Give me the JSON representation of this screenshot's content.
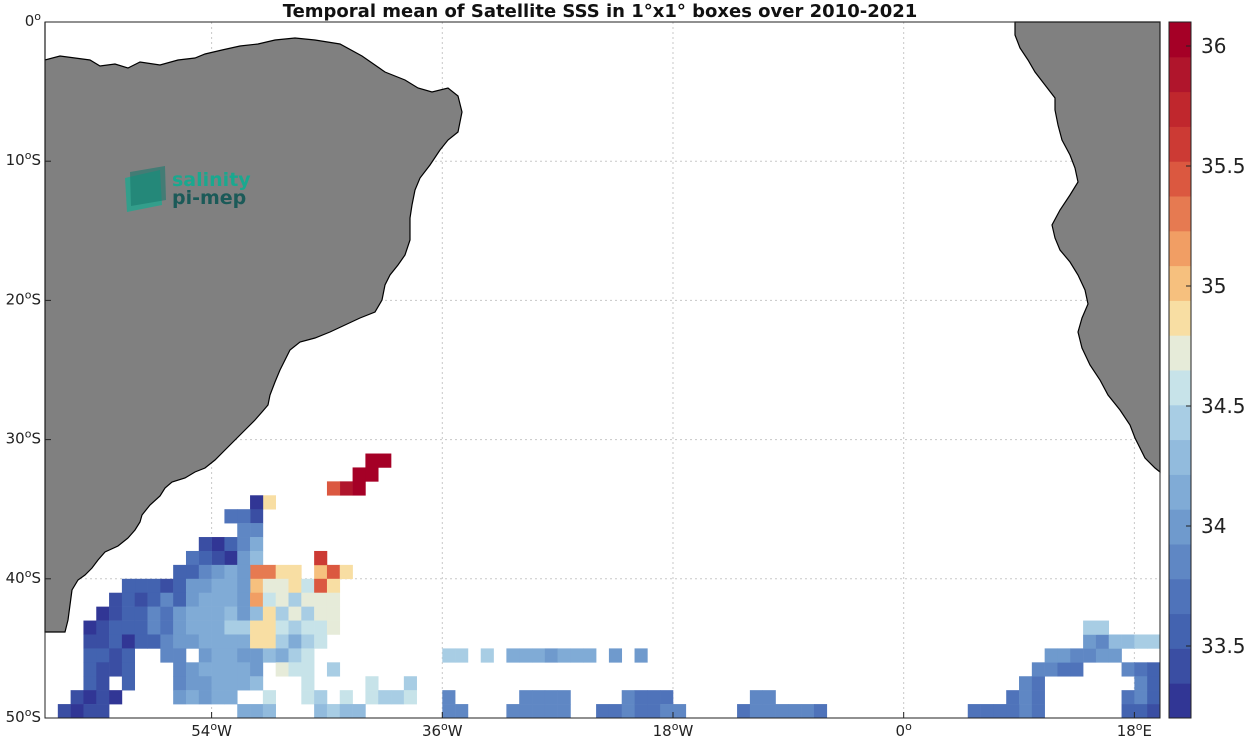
{
  "chart_data": {
    "type": "heatmap",
    "title": "Temporal mean of Satellite SSS in 1°x1° boxes over 2010-2021",
    "x_ticks": [
      {
        "lon": -54,
        "label": "54",
        "hemi": "W"
      },
      {
        "lon": -36,
        "label": "36",
        "hemi": "W"
      },
      {
        "lon": -18,
        "label": "18",
        "hemi": "W"
      },
      {
        "lon": 0,
        "label": "0",
        "hemi": ""
      },
      {
        "lon": 18,
        "label": "18",
        "hemi": "E"
      }
    ],
    "y_ticks": [
      {
        "lat": 0,
        "label": "0",
        "hemi": ""
      },
      {
        "lat": -10,
        "label": "10",
        "hemi": "S"
      },
      {
        "lat": -20,
        "label": "20",
        "hemi": "S"
      },
      {
        "lat": -30,
        "label": "30",
        "hemi": "S"
      },
      {
        "lat": -40,
        "label": "40",
        "hemi": "S"
      },
      {
        "lat": -50,
        "label": "50",
        "hemi": "S"
      }
    ],
    "lon_range": [
      -67,
      20
    ],
    "lat_range": [
      -50,
      0
    ],
    "grid": true,
    "colorbar": {
      "min": 33.2,
      "max": 36.1,
      "ticks": [
        "33.5",
        "34",
        "34.5",
        "35",
        "35.5",
        "36"
      ],
      "colors": [
        "#313695",
        "#3a4ea3",
        "#4363b0",
        "#4f73ba",
        "#5f87c4",
        "#6f9acd",
        "#80abd6",
        "#92bbdd",
        "#a8cde4",
        "#c7e3e9",
        "#e6ebd9",
        "#f8dea3",
        "#f6c07e",
        "#f19e64",
        "#e67a51",
        "#db5840",
        "#cc3a34",
        "#c0272d",
        "#b0152c",
        "#a50026"
      ]
    },
    "land_color": "#808080",
    "logo": {
      "line1": "salinity",
      "line2": "pi-mep"
    },
    "cells": [
      [
        -42,
        -31,
        36.0
      ],
      [
        -41,
        -31,
        36.0
      ],
      [
        -43,
        -32,
        36.0
      ],
      [
        -42,
        -32,
        36.0
      ],
      [
        -44,
        -33,
        35.9
      ],
      [
        -43,
        -33,
        36.0
      ],
      [
        -45,
        -33,
        35.5
      ],
      [
        -50,
        -34,
        34.9
      ],
      [
        -51,
        -34,
        33.3
      ],
      [
        -51,
        -35,
        33.4
      ],
      [
        -52,
        -35,
        33.7
      ],
      [
        -53,
        -35,
        33.7
      ],
      [
        -52,
        -36,
        33.8
      ],
      [
        -51,
        -36,
        33.8
      ],
      [
        -54,
        -37,
        33.3
      ],
      [
        -55,
        -37,
        33.4
      ],
      [
        -53,
        -37,
        33.6
      ],
      [
        -52,
        -37,
        33.9
      ],
      [
        -51,
        -37,
        34.1
      ],
      [
        -53,
        -38,
        33.3
      ],
      [
        -54,
        -38,
        33.4
      ],
      [
        -55,
        -38,
        33.6
      ],
      [
        -56,
        -38,
        33.7
      ],
      [
        -52,
        -38,
        34.0
      ],
      [
        -51,
        -38,
        34.3
      ],
      [
        -51,
        -39,
        35.3
      ],
      [
        -50,
        -39,
        35.3
      ],
      [
        -49,
        -39,
        34.9
      ],
      [
        -48,
        -39,
        34.9
      ],
      [
        -46,
        -39,
        35.0
      ],
      [
        -45,
        -39,
        35.5
      ],
      [
        -46,
        -38,
        35.6
      ],
      [
        -44,
        -39,
        34.9
      ],
      [
        -56,
        -39,
        33.5
      ],
      [
        -57,
        -39,
        33.6
      ],
      [
        -55,
        -39,
        33.8
      ],
      [
        -54,
        -39,
        34.0
      ],
      [
        -53,
        -39,
        34.1
      ],
      [
        -52,
        -39,
        34.0
      ],
      [
        -51,
        -40,
        35.0
      ],
      [
        -50,
        -40,
        34.7
      ],
      [
        -49,
        -40,
        34.7
      ],
      [
        -48,
        -40,
        34.9
      ],
      [
        -47,
        -40,
        34.6
      ],
      [
        -46,
        -40,
        35.4
      ],
      [
        -45,
        -40,
        34.8
      ],
      [
        -60,
        -40,
        33.5
      ],
      [
        -61,
        -40,
        33.5
      ],
      [
        -59,
        -40,
        33.5
      ],
      [
        -58,
        -40,
        33.4
      ],
      [
        -57,
        -40,
        33.6
      ],
      [
        -56,
        -40,
        34.0
      ],
      [
        -55,
        -40,
        34.0
      ],
      [
        -54,
        -40,
        34.1
      ],
      [
        -53,
        -40,
        34.2
      ],
      [
        -52,
        -40,
        34.0
      ],
      [
        -62,
        -41,
        33.4
      ],
      [
        -61,
        -41,
        33.5
      ],
      [
        -60,
        -41,
        33.4
      ],
      [
        -59,
        -41,
        33.6
      ],
      [
        -58,
        -41,
        33.8
      ],
      [
        -57,
        -41,
        33.5
      ],
      [
        -56,
        -41,
        34.0
      ],
      [
        -55,
        -41,
        34.1
      ],
      [
        -54,
        -41,
        34.1
      ],
      [
        -53,
        -41,
        34.2
      ],
      [
        -52,
        -41,
        34.0
      ],
      [
        -51,
        -41,
        35.1
      ],
      [
        -50,
        -41,
        34.6
      ],
      [
        -49,
        -41,
        34.7
      ],
      [
        -48,
        -41,
        34.4
      ],
      [
        -47,
        -41,
        34.7
      ],
      [
        -46,
        -41,
        34.7
      ],
      [
        -45,
        -41,
        34.7
      ],
      [
        -63,
        -42,
        33.3
      ],
      [
        -62,
        -42,
        33.4
      ],
      [
        -61,
        -42,
        33.5
      ],
      [
        -60,
        -42,
        33.6
      ],
      [
        -59,
        -42,
        33.9
      ],
      [
        -58,
        -42,
        33.7
      ],
      [
        -57,
        -42,
        34.0
      ],
      [
        -56,
        -42,
        34.1
      ],
      [
        -55,
        -42,
        34.2
      ],
      [
        -54,
        -42,
        34.1
      ],
      [
        -53,
        -42,
        34.3
      ],
      [
        -52,
        -42,
        34.0
      ],
      [
        -51,
        -42,
        34.3
      ],
      [
        -50,
        -42,
        34.9
      ],
      [
        -49,
        -42,
        34.4
      ],
      [
        -48,
        -42,
        34.7
      ],
      [
        -47,
        -42,
        34.4
      ],
      [
        -46,
        -42,
        34.7
      ],
      [
        -45,
        -42,
        34.7
      ],
      [
        -64,
        -43,
        33.3
      ],
      [
        -63,
        -43,
        33.4
      ],
      [
        -62,
        -43,
        33.5
      ],
      [
        -61,
        -43,
        33.6
      ],
      [
        -60,
        -43,
        33.5
      ],
      [
        -59,
        -43,
        33.8
      ],
      [
        -58,
        -43,
        33.7
      ],
      [
        -57,
        -43,
        34.0
      ],
      [
        -56,
        -43,
        34.1
      ],
      [
        -55,
        -43,
        34.1
      ],
      [
        -54,
        -43,
        34.2
      ],
      [
        -53,
        -43,
        34.4
      ],
      [
        -52,
        -43,
        34.4
      ],
      [
        -51,
        -43,
        34.9
      ],
      [
        -50,
        -43,
        34.9
      ],
      [
        -49,
        -43,
        34.6
      ],
      [
        -48,
        -43,
        34.4
      ],
      [
        -47,
        -43,
        34.6
      ],
      [
        -46,
        -43,
        34.6
      ],
      [
        -45,
        -43,
        34.7
      ],
      [
        -64,
        -44,
        33.4
      ],
      [
        -63,
        -44,
        33.4
      ],
      [
        -62,
        -44,
        33.5
      ],
      [
        -61,
        -44,
        33.3
      ],
      [
        -60,
        -44,
        33.5
      ],
      [
        -59,
        -44,
        33.5
      ],
      [
        -58,
        -44,
        33.8
      ],
      [
        -57,
        -44,
        34.0
      ],
      [
        -56,
        -44,
        34.0
      ],
      [
        -55,
        -44,
        34.1
      ],
      [
        -54,
        -44,
        34.1
      ],
      [
        -53,
        -44,
        34.1
      ],
      [
        -52,
        -44,
        34.2
      ],
      [
        -51,
        -44,
        34.9
      ],
      [
        -50,
        -44,
        34.9
      ],
      [
        -49,
        -44,
        34.5
      ],
      [
        -48,
        -44,
        34.2
      ],
      [
        -47,
        -44,
        34.5
      ],
      [
        -46,
        -44,
        34.6
      ],
      [
        -64,
        -45,
        33.5
      ],
      [
        -63,
        -45,
        33.5
      ],
      [
        -62,
        -45,
        33.4
      ],
      [
        -61,
        -45,
        33.6
      ],
      [
        -58,
        -45,
        33.8
      ],
      [
        -57,
        -45,
        33.9
      ],
      [
        -55,
        -45,
        34.0
      ],
      [
        -54,
        -45,
        34.1
      ],
      [
        -53,
        -45,
        34.1
      ],
      [
        -52,
        -45,
        34.0
      ],
      [
        -51,
        -45,
        34.0
      ],
      [
        -50,
        -45,
        34.3
      ],
      [
        -49,
        -45,
        34.1
      ],
      [
        -48,
        -45,
        34.5
      ],
      [
        -47,
        -45,
        34.6
      ],
      [
        -36,
        -45,
        34.4
      ],
      [
        -35,
        -45,
        34.5
      ],
      [
        -33,
        -45,
        34.4
      ],
      [
        -31,
        -45,
        34.2
      ],
      [
        -30,
        -45,
        34.2
      ],
      [
        -29,
        -45,
        34.2
      ],
      [
        -28,
        -45,
        34.0
      ],
      [
        -27,
        -45,
        34.1
      ],
      [
        -26,
        -45,
        34.2
      ],
      [
        -25,
        -45,
        34.2
      ],
      [
        -23,
        -45,
        34.0
      ],
      [
        -21,
        -45,
        34.0
      ],
      [
        -64,
        -46,
        33.5
      ],
      [
        -63,
        -46,
        33.4
      ],
      [
        -62,
        -46,
        33.4
      ],
      [
        -61,
        -46,
        33.6
      ],
      [
        -57,
        -46,
        33.9
      ],
      [
        -56,
        -46,
        34.0
      ],
      [
        -55,
        -46,
        34.1
      ],
      [
        -54,
        -46,
        34.1
      ],
      [
        -53,
        -46,
        34.2
      ],
      [
        -52,
        -46,
        34.1
      ],
      [
        -51,
        -46,
        34.0
      ],
      [
        -49,
        -46,
        34.7
      ],
      [
        -48,
        -46,
        34.6
      ],
      [
        -47,
        -46,
        34.6
      ],
      [
        -45,
        -46,
        34.5
      ],
      [
        -64,
        -47,
        33.5
      ],
      [
        -63,
        -47,
        33.4
      ],
      [
        -61,
        -47,
        33.6
      ],
      [
        -57,
        -47,
        33.8
      ],
      [
        -56,
        -47,
        34.0
      ],
      [
        -55,
        -47,
        34.0
      ],
      [
        -54,
        -47,
        34.1
      ],
      [
        -53,
        -47,
        34.1
      ],
      [
        -52,
        -47,
        34.2
      ],
      [
        -51,
        -47,
        34.3
      ],
      [
        -47,
        -47,
        34.6
      ],
      [
        -42,
        -47,
        34.6
      ],
      [
        -39,
        -47,
        34.5
      ],
      [
        -65,
        -48,
        33.4
      ],
      [
        -64,
        -48,
        33.3
      ],
      [
        -63,
        -48,
        33.4
      ],
      [
        -62,
        -48,
        33.2
      ],
      [
        -57,
        -48,
        34.0
      ],
      [
        -56,
        -48,
        34.1
      ],
      [
        -55,
        -48,
        34.0
      ],
      [
        -54,
        -48,
        34.1
      ],
      [
        -53,
        -48,
        34.1
      ],
      [
        -50,
        -48,
        34.6
      ],
      [
        -47,
        -48,
        34.6
      ],
      [
        -46,
        -48,
        34.4
      ],
      [
        -44,
        -48,
        34.6
      ],
      [
        -42,
        -48,
        34.6
      ],
      [
        -41,
        -48,
        34.5
      ],
      [
        -40,
        -48,
        34.4
      ],
      [
        -39,
        -48,
        34.6
      ],
      [
        -36,
        -48,
        33.9
      ],
      [
        -30,
        -48,
        33.9
      ],
      [
        -29,
        -48,
        33.9
      ],
      [
        -28,
        -48,
        33.9
      ],
      [
        -27,
        -48,
        33.9
      ],
      [
        -66,
        -49,
        33.4
      ],
      [
        -65,
        -49,
        33.3
      ],
      [
        -64,
        -49,
        33.4
      ],
      [
        -63,
        -49,
        33.4
      ],
      [
        -52,
        -49,
        34.1
      ],
      [
        -51,
        -49,
        34.1
      ],
      [
        -50,
        -49,
        34.3
      ],
      [
        -46,
        -49,
        34.3
      ],
      [
        -45,
        -49,
        34.4
      ],
      [
        -44,
        -49,
        34.3
      ],
      [
        -43,
        -49,
        34.3
      ],
      [
        -36,
        -49,
        33.9
      ],
      [
        -35,
        -49,
        33.9
      ],
      [
        -31,
        -49,
        33.8
      ],
      [
        -30,
        -49,
        33.9
      ],
      [
        -29,
        -49,
        33.9
      ],
      [
        -28,
        -49,
        33.8
      ],
      [
        -27,
        -49,
        33.8
      ],
      [
        -22,
        -48,
        33.8
      ],
      [
        -21,
        -48,
        33.7
      ],
      [
        -20,
        -48,
        33.7
      ],
      [
        -19,
        -48,
        33.7
      ],
      [
        -24,
        -49,
        33.7
      ],
      [
        -23,
        -49,
        33.7
      ],
      [
        -22,
        -49,
        33.8
      ],
      [
        -21,
        -49,
        33.7
      ],
      [
        -20,
        -49,
        33.7
      ],
      [
        -19,
        -49,
        33.8
      ],
      [
        -18,
        -49,
        33.8
      ],
      [
        -12,
        -48,
        33.8
      ],
      [
        -11,
        -48,
        33.8
      ],
      [
        -13,
        -49,
        33.7
      ],
      [
        -12,
        -49,
        33.8
      ],
      [
        -11,
        -49,
        33.8
      ],
      [
        -10,
        -49,
        33.8
      ],
      [
        -9,
        -49,
        33.8
      ],
      [
        -8,
        -49,
        33.8
      ],
      [
        -7,
        -49,
        33.7
      ],
      [
        9,
        -49,
        33.8
      ],
      [
        8,
        -49,
        33.7
      ],
      [
        7,
        -49,
        33.7
      ],
      [
        6,
        -49,
        33.7
      ],
      [
        5,
        -49,
        33.7
      ],
      [
        10,
        -49,
        33.7
      ],
      [
        8,
        -48,
        33.7
      ],
      [
        9,
        -48,
        33.8
      ],
      [
        10,
        -48,
        33.7
      ],
      [
        9,
        -47,
        33.8
      ],
      [
        10,
        -47,
        33.7
      ],
      [
        10,
        -46,
        33.8
      ],
      [
        11,
        -46,
        33.8
      ],
      [
        12,
        -46,
        33.7
      ],
      [
        13,
        -46,
        33.7
      ],
      [
        11,
        -45,
        34.0
      ],
      [
        12,
        -45,
        34.0
      ],
      [
        13,
        -45,
        33.9
      ],
      [
        14,
        -45,
        33.9
      ],
      [
        15,
        -45,
        34.0
      ],
      [
        16,
        -45,
        34.0
      ],
      [
        14,
        -44,
        34.0
      ],
      [
        15,
        -44,
        33.9
      ],
      [
        16,
        -44,
        34.3
      ],
      [
        17,
        -44,
        34.3
      ],
      [
        18,
        -44,
        34.4
      ],
      [
        19,
        -44,
        34.4
      ],
      [
        14,
        -43,
        34.5
      ],
      [
        15,
        -43,
        34.5
      ],
      [
        17,
        -46,
        33.8
      ],
      [
        18,
        -46,
        33.7
      ],
      [
        19,
        -46,
        33.5
      ],
      [
        18,
        -47,
        33.8
      ],
      [
        19,
        -47,
        33.6
      ],
      [
        17,
        -48,
        33.7
      ],
      [
        18,
        -48,
        33.8
      ],
      [
        19,
        -48,
        33.6
      ],
      [
        17,
        -49,
        33.6
      ],
      [
        18,
        -49,
        33.6
      ],
      [
        19,
        -49,
        33.4
      ]
    ]
  }
}
